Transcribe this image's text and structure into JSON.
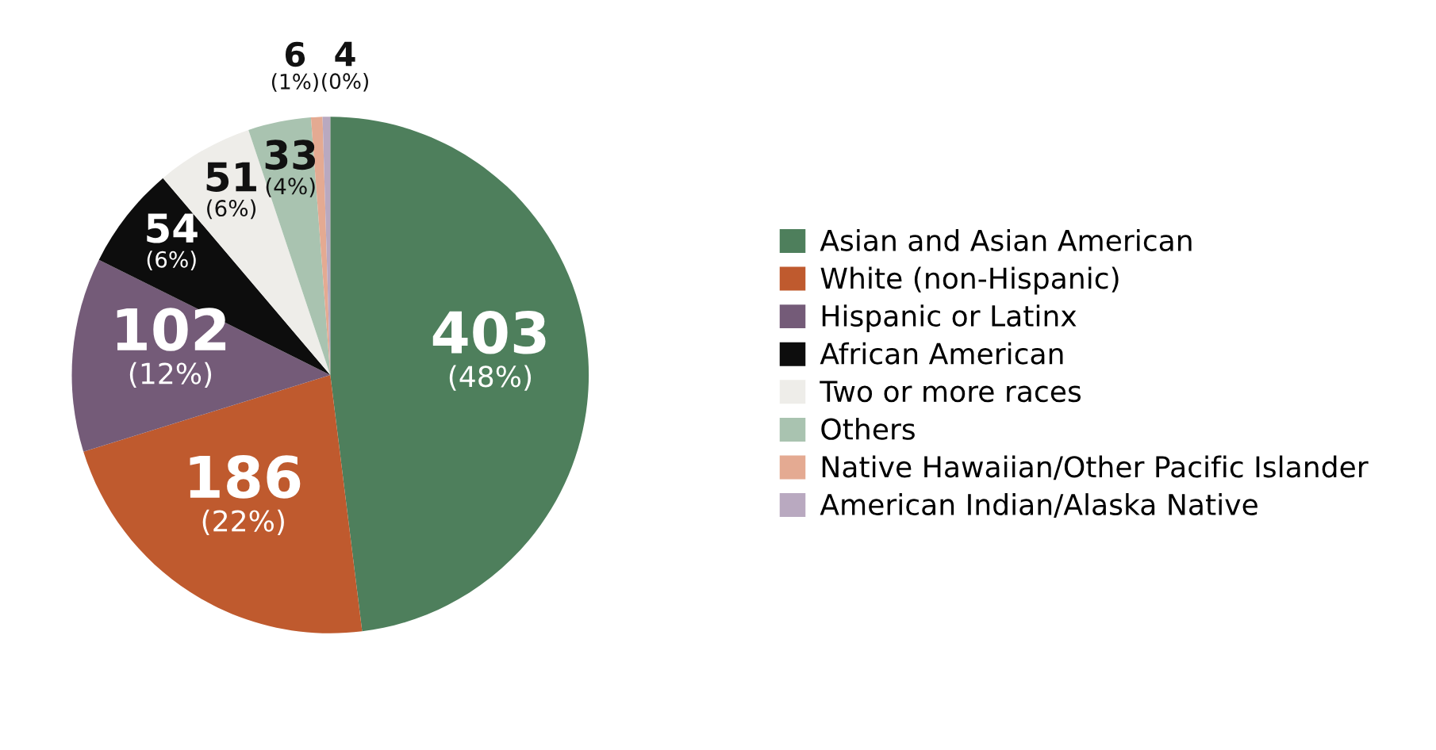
{
  "chart_data": {
    "type": "pie",
    "categories": [
      "Asian and Asian American",
      "White (non-Hispanic)",
      "Hispanic or Latinx",
      "African American",
      "Two or more races",
      "Others",
      "Native Hawaiian/Other Pacific Islander",
      "American Indian/Alaska Native"
    ],
    "values": [
      403,
      186,
      102,
      54,
      51,
      33,
      6,
      4
    ],
    "colors": [
      "#4e7f5c",
      "#bf5a2e",
      "#745b78",
      "#0d0d0d",
      "#eeede9",
      "#a9c3b0",
      "#e4aa92",
      "#b9a9c0"
    ],
    "value_labels": [
      "403\n(48%)",
      "186\n(22%)",
      "102\n(12%)",
      "54\n(6%)",
      "51\n(6%)",
      "33\n(4%)",
      "6\n(1%)",
      "4\n(0%)"
    ],
    "legend": "right"
  }
}
